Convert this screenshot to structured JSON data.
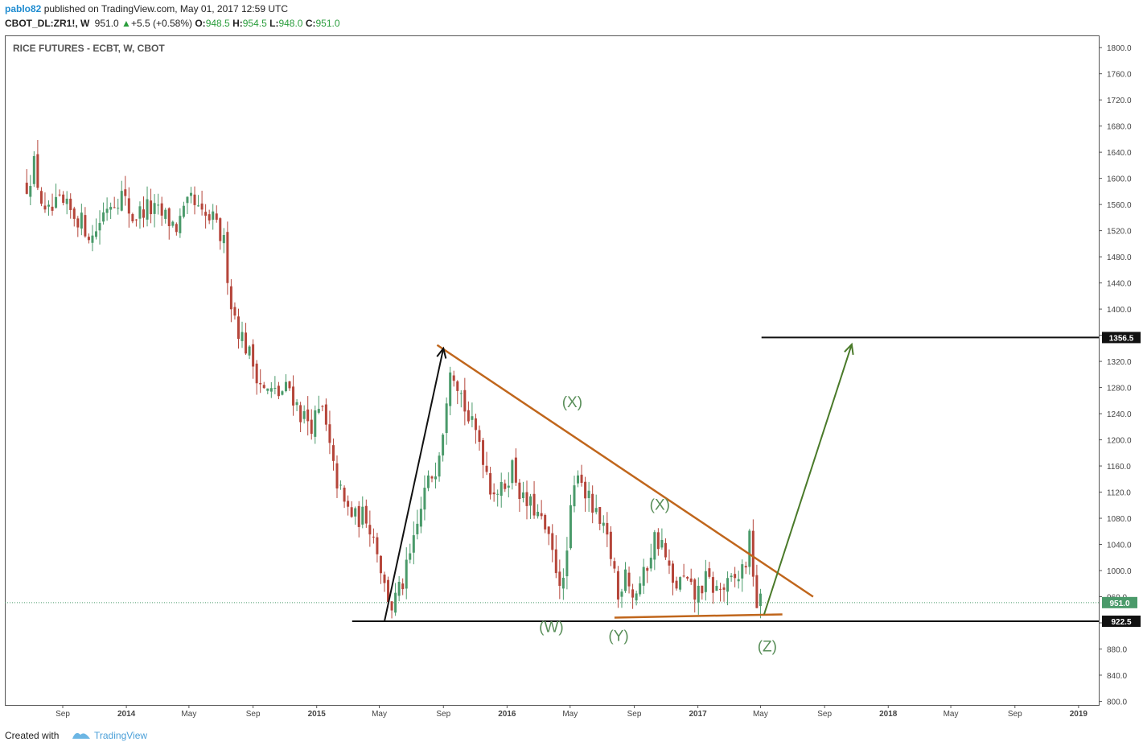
{
  "header": {
    "user": "pablo82",
    "published": " published on TradingView.com, May 01, 2017 12:59 UTC",
    "symbol": "CBOT_DL:ZR1!, W",
    "price": "951.0",
    "change_arrow": "▲",
    "change": "+5.5 (+0.58%)",
    "o_label": "O:",
    "o": "948.5",
    "h_label": "H:",
    "h": "954.5",
    "l_label": "L:",
    "l": "948.0",
    "c_label": "C:",
    "c": "951.0"
  },
  "chart_title": "RICE FUTURES - ECBT, W, CBOT",
  "footer": {
    "created": "Created with",
    "brand": "TradingView"
  },
  "colors": {
    "up": "#4a9a6a",
    "down": "#b5453a",
    "trend": "#c0661c",
    "arrow_green": "#4a7a2a",
    "wave_label": "#5a8f5a",
    "axis": "#555555"
  },
  "chart_data": {
    "type": "candlestick",
    "title": "RICE FUTURES - ECBT, W, CBOT",
    "ylim": [
      800,
      1820
    ],
    "yticks": [
      800,
      840,
      880,
      920,
      960,
      1000,
      1040,
      1080,
      1120,
      1160,
      1200,
      1240,
      1280,
      1320,
      1360,
      1400,
      1440,
      1480,
      1520,
      1560,
      1600,
      1640,
      1680,
      1720,
      1760,
      1800
    ],
    "ytick_labels": [
      "800.0",
      "840.0",
      "880.0",
      "920.0",
      "960.0",
      "1000.0",
      "1040.0",
      "1080.0",
      "1120.0",
      "1160.0",
      "1200.0",
      "1240.0",
      "1280.0",
      "1320.0",
      "1360.0",
      "1400.0",
      "1440.0",
      "1480.0",
      "1520.0",
      "1560.0",
      "1600.0",
      "1640.0",
      "1680.0",
      "1720.0",
      "1760.0",
      "1800.0"
    ],
    "xticks": [
      {
        "label": "Sep",
        "date": "2013-09-01",
        "bold": false
      },
      {
        "label": "2014",
        "date": "2014-01-01",
        "bold": true
      },
      {
        "label": "May",
        "date": "2014-05-01",
        "bold": false
      },
      {
        "label": "Sep",
        "date": "2014-09-01",
        "bold": false
      },
      {
        "label": "2015",
        "date": "2015-01-01",
        "bold": true
      },
      {
        "label": "May",
        "date": "2015-05-01",
        "bold": false
      },
      {
        "label": "Sep",
        "date": "2015-09-01",
        "bold": false
      },
      {
        "label": "2016",
        "date": "2016-01-01",
        "bold": true
      },
      {
        "label": "May",
        "date": "2016-05-01",
        "bold": false
      },
      {
        "label": "Sep",
        "date": "2016-09-01",
        "bold": false
      },
      {
        "label": "2017",
        "date": "2017-01-01",
        "bold": true
      },
      {
        "label": "May",
        "date": "2017-05-01",
        "bold": false
      },
      {
        "label": "Sep",
        "date": "2017-09-01",
        "bold": false
      },
      {
        "label": "2018",
        "date": "2018-01-01",
        "bold": true
      },
      {
        "label": "May",
        "date": "2018-05-01",
        "bold": false
      },
      {
        "label": "Sep",
        "date": "2018-09-01",
        "bold": false
      },
      {
        "label": "2019",
        "date": "2019-01-01",
        "bold": true
      }
    ],
    "price_anchors": [
      [
        "2013-06-24",
        1590
      ],
      [
        "2013-07-08",
        1620
      ],
      [
        "2013-07-29",
        1540
      ],
      [
        "2013-08-26",
        1560
      ],
      [
        "2013-09-30",
        1540
      ],
      [
        "2013-10-28",
        1510
      ],
      [
        "2013-11-25",
        1560
      ],
      [
        "2013-12-23",
        1575
      ],
      [
        "2014-01-13",
        1540
      ],
      [
        "2014-02-10",
        1555
      ],
      [
        "2014-03-17",
        1540
      ],
      [
        "2014-04-07",
        1525
      ],
      [
        "2014-05-05",
        1565
      ],
      [
        "2014-05-26",
        1540
      ],
      [
        "2014-06-16",
        1535
      ],
      [
        "2014-07-07",
        1500
      ],
      [
        "2014-07-21",
        1410
      ],
      [
        "2014-08-04",
        1370
      ],
      [
        "2014-08-25",
        1330
      ],
      [
        "2014-09-22",
        1275
      ],
      [
        "2014-10-20",
        1270
      ],
      [
        "2014-11-10",
        1280
      ],
      [
        "2014-12-01",
        1240
      ],
      [
        "2014-12-22",
        1225
      ],
      [
        "2015-01-12",
        1245
      ],
      [
        "2015-02-02",
        1155
      ],
      [
        "2015-02-23",
        1100
      ],
      [
        "2015-03-16",
        1080
      ],
      [
        "2015-04-06",
        1085
      ],
      [
        "2015-04-27",
        1035
      ],
      [
        "2015-05-11",
        975
      ],
      [
        "2015-05-25",
        945
      ],
      [
        "2015-06-15",
        980
      ],
      [
        "2015-07-06",
        1040
      ],
      [
        "2015-07-27",
        1120
      ],
      [
        "2015-08-17",
        1160
      ],
      [
        "2015-08-31",
        1220
      ],
      [
        "2015-09-14",
        1320
      ],
      [
        "2015-09-28",
        1290
      ],
      [
        "2015-10-19",
        1230
      ],
      [
        "2015-11-09",
        1200
      ],
      [
        "2015-11-30",
        1130
      ],
      [
        "2015-12-21",
        1120
      ],
      [
        "2016-01-11",
        1160
      ],
      [
        "2016-02-01",
        1105
      ],
      [
        "2016-02-22",
        1095
      ],
      [
        "2016-03-14",
        1060
      ],
      [
        "2016-04-04",
        1005
      ],
      [
        "2016-04-18",
        975
      ],
      [
        "2016-05-02",
        1085
      ],
      [
        "2016-05-16",
        1160
      ],
      [
        "2016-05-30",
        1120
      ],
      [
        "2016-06-20",
        1080
      ],
      [
        "2016-07-11",
        1045
      ],
      [
        "2016-07-25",
        1000
      ],
      [
        "2016-08-01",
        955
      ],
      [
        "2016-08-15",
        1010
      ],
      [
        "2016-08-29",
        960
      ],
      [
        "2016-09-19",
        990
      ],
      [
        "2016-10-10",
        1050
      ],
      [
        "2016-10-24",
        1040
      ],
      [
        "2016-11-14",
        975
      ],
      [
        "2016-12-05",
        985
      ],
      [
        "2016-12-26",
        960
      ],
      [
        "2017-01-16",
        985
      ],
      [
        "2017-02-06",
        970
      ],
      [
        "2017-02-27",
        975
      ],
      [
        "2017-03-20",
        990
      ],
      [
        "2017-04-03",
        1015
      ],
      [
        "2017-04-10",
        1045
      ],
      [
        "2017-04-17",
        1000
      ],
      [
        "2017-04-24",
        948
      ],
      [
        "2017-05-01",
        951
      ]
    ],
    "current_price": 951.0,
    "horizontal_levels": [
      {
        "price": 922.5,
        "label": "922.5"
      },
      {
        "price": 1356.5,
        "label": "1356.5"
      }
    ],
    "trendlines": [
      {
        "name": "upper-triangle",
        "from": [
          "2015-08-20",
          1345
        ],
        "to": [
          "2017-08-10",
          960
        ]
      },
      {
        "name": "lower-triangle",
        "from": [
          "2016-07-25",
          928
        ],
        "to": [
          "2017-06-12",
          933
        ]
      },
      {
        "name": "support",
        "from": [
          "2015-03-10",
          922.5
        ],
        "to": [
          "2019-04-01",
          922.5
        ]
      },
      {
        "name": "resistance",
        "from": [
          "2017-05-03",
          1356.5
        ],
        "to": [
          "2019-04-01",
          1356.5
        ]
      }
    ],
    "arrows": [
      {
        "name": "impulse-arrow",
        "color": "black",
        "from": [
          "2015-05-11",
          922.5
        ],
        "to": [
          "2015-09-01",
          1340
        ]
      },
      {
        "name": "target-arrow",
        "color": "green",
        "from": [
          "2017-05-08",
          933
        ],
        "to": [
          "2017-10-23",
          1346
        ]
      }
    ],
    "annotations": [
      {
        "text": "(X)",
        "date": "2016-05-05",
        "price": 1250
      },
      {
        "text": "(X)",
        "date": "2016-10-20",
        "price": 1093
      },
      {
        "text": "(W)",
        "date": "2016-03-26",
        "price": 906
      },
      {
        "text": "(Y)",
        "date": "2016-08-02",
        "price": 892
      },
      {
        "text": "(Z)",
        "date": "2017-05-14",
        "price": 876
      }
    ]
  }
}
